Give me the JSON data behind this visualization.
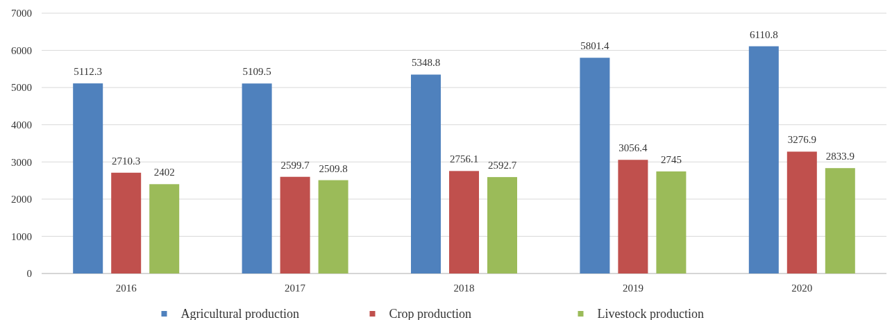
{
  "chart_data": {
    "type": "bar",
    "categories": [
      "2016",
      "2017",
      "2018",
      "2019",
      "2020"
    ],
    "series": [
      {
        "name": "Agricultural production",
        "color": "#4f81bd",
        "values": [
          5112.3,
          5109.5,
          5348.8,
          5801.4,
          6110.8
        ]
      },
      {
        "name": "Crop production",
        "color": "#c0504d",
        "values": [
          2710.3,
          2599.7,
          2756.1,
          3056.4,
          3276.9
        ]
      },
      {
        "name": "Livestock production",
        "color": "#9bbb59",
        "values": [
          2402,
          2509.8,
          2592.7,
          2745,
          2833.9
        ]
      }
    ],
    "ylim": [
      0,
      7000
    ],
    "yticks": [
      0,
      1000,
      2000,
      3000,
      4000,
      5000,
      6000,
      7000
    ],
    "grid": "y",
    "legend": "bottom",
    "data_labels": true
  }
}
